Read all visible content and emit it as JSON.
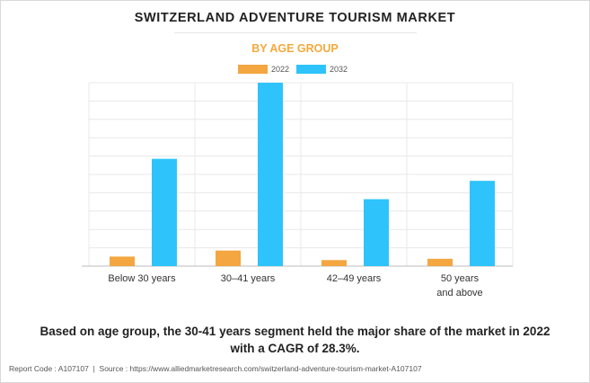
{
  "title": "SWITZERLAND ADVENTURE TOURISM MARKET",
  "subtitle": "BY AGE GROUP",
  "footer": {
    "report_code": "Report Code : A107107",
    "separator": "|",
    "source": "Source : https://www.alliedmarketresearch.com/switzerland-adventure-tourism-market-A107107"
  },
  "note": {
    "line1": "Based on age group, the 30-41 years segment held the major share of the market in 2022",
    "line2": "with a CAGR of 28.3%."
  },
  "chart_data": {
    "type": "bar",
    "title": "SWITZERLAND ADVENTURE TOURISM MARKET",
    "subtitle": "BY AGE GROUP",
    "xlabel": "",
    "ylabel": "",
    "categories": [
      "Below 30 years",
      "30–41 years",
      "42–49 years",
      "50 years and above"
    ],
    "category_lines": [
      [
        "Below 30 years"
      ],
      [
        "30–41 years"
      ],
      [
        "42–49 years"
      ],
      [
        "50 years",
        "and above"
      ]
    ],
    "series": [
      {
        "name": "2022",
        "color": "#f4a640",
        "values": [
          5.2,
          8.5,
          3.3,
          4.0
        ]
      },
      {
        "name": "2032",
        "color": "#2ec4fb",
        "values": [
          58.5,
          100.0,
          36.5,
          46.5
        ]
      }
    ],
    "ylim": [
      0,
      100
    ],
    "grid": true,
    "y_tick_labels_shown": false,
    "legend": "top-center"
  }
}
